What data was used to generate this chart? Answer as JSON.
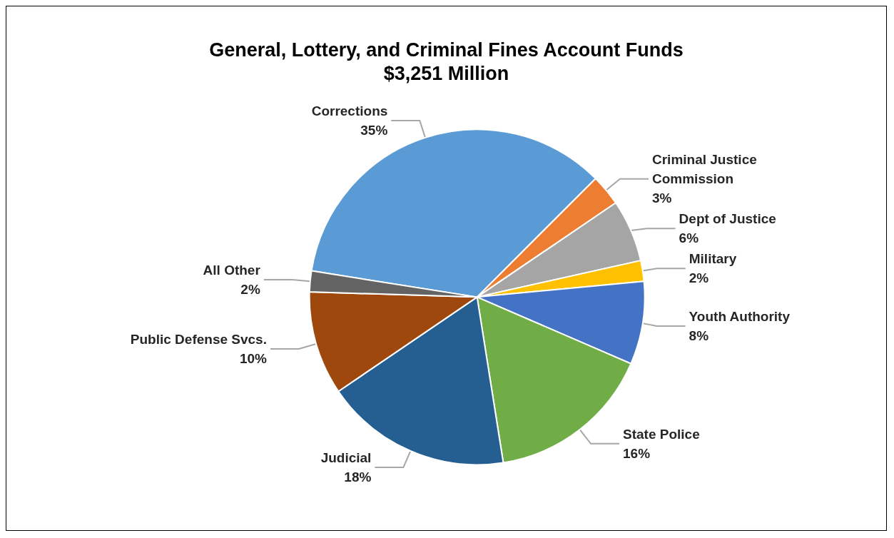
{
  "chart_data": {
    "type": "pie",
    "title": "General, Lottery, and Criminal Fines Account Funds",
    "subtitle": "$3,251 Million",
    "categories": [
      "Corrections",
      "Criminal Justice\nCommission",
      "Dept of Justice",
      "Military",
      "Youth Authority",
      "State Police",
      "Judicial",
      "Public Defense Svcs.",
      "All Other"
    ],
    "values": [
      35,
      3,
      6,
      2,
      8,
      16,
      18,
      10,
      2
    ],
    "colors": [
      "#5b9bd5",
      "#ed7d31",
      "#a5a5a5",
      "#ffc000",
      "#4472c4",
      "#70ad47",
      "#255e91",
      "#9e480e",
      "#636363"
    ],
    "value_labels": [
      "35%",
      "3%",
      "6%",
      "2%",
      "8%",
      "16%",
      "18%",
      "10%",
      "2%"
    ],
    "legend": false
  }
}
